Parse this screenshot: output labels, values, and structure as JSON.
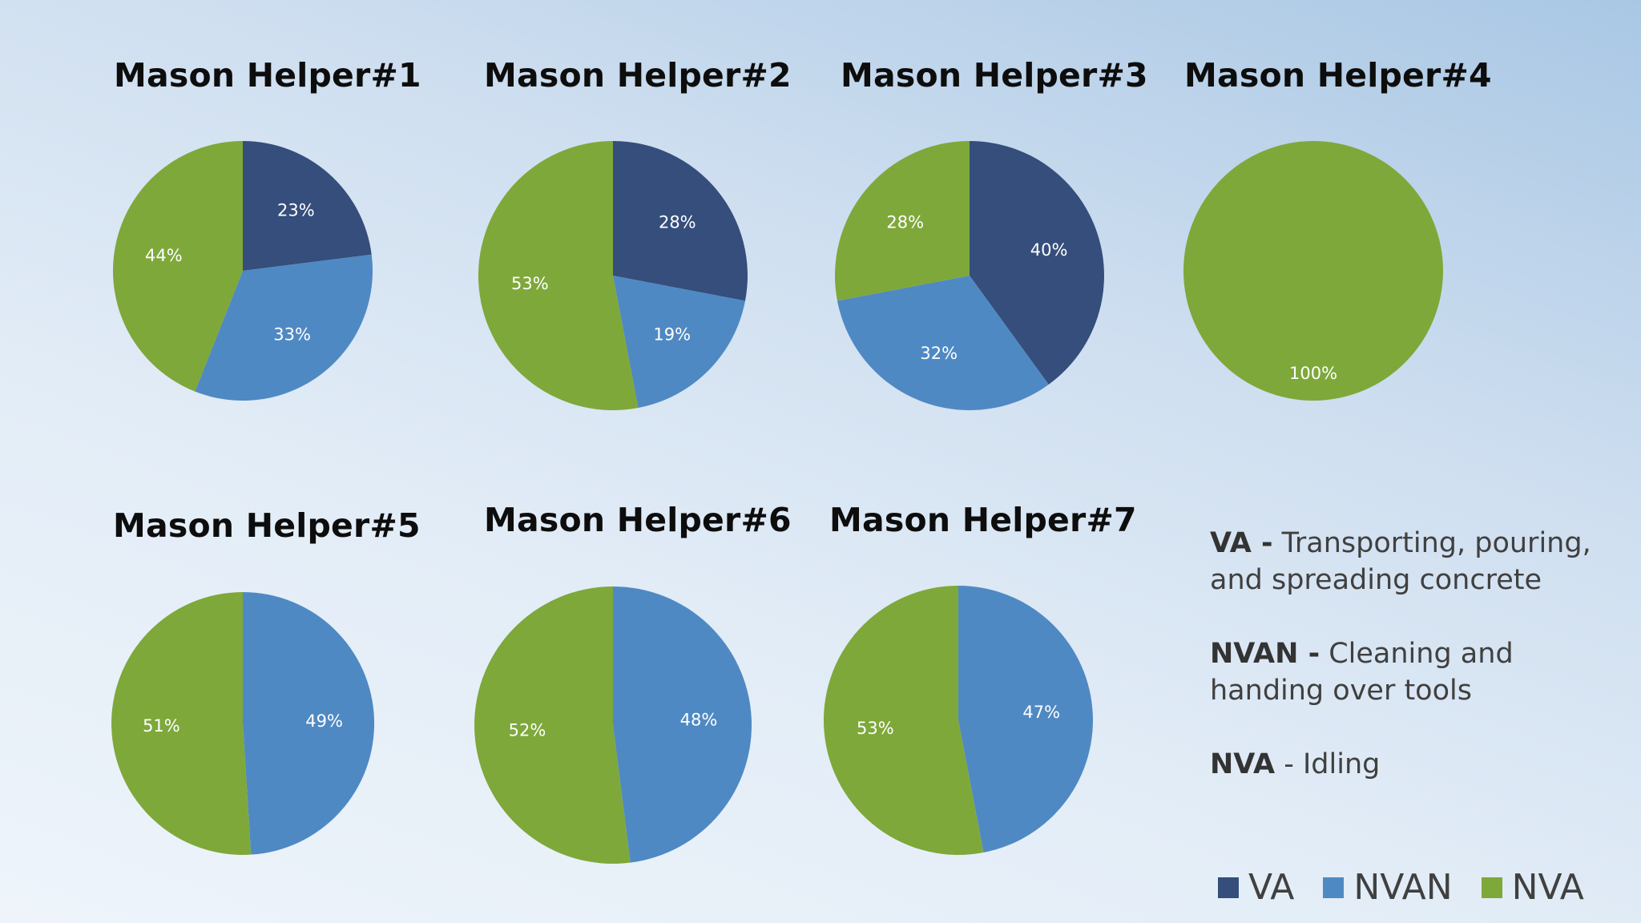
{
  "colors": {
    "VA": "#354e7c",
    "NVAN": "#4f89c3",
    "NVA": "#7ea83a"
  },
  "chart_data": [
    {
      "type": "pie",
      "title": "Mason Helper#1",
      "labels": [
        "VA",
        "NVAN",
        "NVA"
      ],
      "values": [
        23,
        33,
        44
      ],
      "value_labels": [
        "23%",
        "33%",
        "44%"
      ]
    },
    {
      "type": "pie",
      "title": "Mason Helper#2",
      "labels": [
        "VA",
        "NVAN",
        "NVA"
      ],
      "values": [
        28,
        19,
        53
      ],
      "value_labels": [
        "28%",
        "19%",
        "53%"
      ]
    },
    {
      "type": "pie",
      "title": "Mason Helper#3",
      "labels": [
        "VA",
        "NVAN",
        "NVA"
      ],
      "values": [
        40,
        32,
        28
      ],
      "value_labels": [
        "40%",
        "32%",
        "28%"
      ]
    },
    {
      "type": "pie",
      "title": "Mason Helper#4",
      "labels": [
        "VA",
        "NVAN",
        "NVA"
      ],
      "values": [
        0,
        0,
        100
      ],
      "value_labels": [
        "",
        "",
        "100%"
      ]
    },
    {
      "type": "pie",
      "title": "Mason Helper#5",
      "labels": [
        "VA",
        "NVAN",
        "NVA"
      ],
      "values": [
        0,
        49,
        51
      ],
      "value_labels": [
        "",
        "49%",
        "51%"
      ]
    },
    {
      "type": "pie",
      "title": "Mason Helper#6",
      "labels": [
        "VA",
        "NVAN",
        "NVA"
      ],
      "values": [
        0,
        48,
        52
      ],
      "value_labels": [
        "",
        "48%",
        "52%"
      ]
    },
    {
      "type": "pie",
      "title": "Mason Helper#7",
      "labels": [
        "VA",
        "NVAN",
        "NVA"
      ],
      "values": [
        0,
        47,
        53
      ],
      "value_labels": [
        "",
        "47%",
        "53%"
      ]
    }
  ],
  "descriptions": [
    {
      "term": "VA -",
      "text": " Transporting, pouring, and spreading concrete"
    },
    {
      "term": "NVAN  -",
      "text": " Cleaning and handing over tools"
    },
    {
      "term": "NVA",
      "text": " - Idling"
    }
  ],
  "legend": [
    {
      "key": "VA",
      "label": "VA"
    },
    {
      "key": "NVAN",
      "label": "NVAN"
    },
    {
      "key": "NVA",
      "label": "NVA"
    }
  ]
}
